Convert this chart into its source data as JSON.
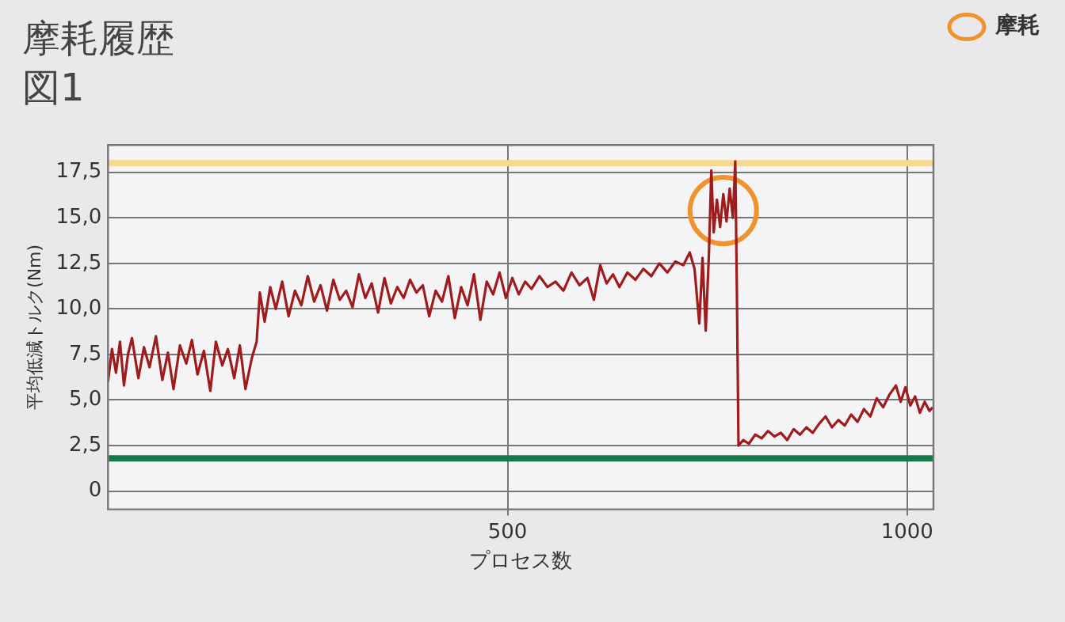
{
  "chart_data": {
    "type": "line",
    "title": "摩耗履歴",
    "subtitle": "図1",
    "xlabel": "プロセス数",
    "ylabel": "平均低減トルク(Nm)",
    "xlim": [
      0,
      1033
    ],
    "xticks": [
      500,
      1000
    ],
    "ylim": [
      -1,
      19
    ],
    "yticks": [
      0,
      {
        "value": 2.5,
        "label": "2,5"
      },
      {
        "value": 5,
        "label": "5,0"
      },
      {
        "value": 7.5,
        "label": "7,5"
      },
      {
        "value": 10,
        "label": "10,0"
      },
      {
        "value": 12.5,
        "label": "12,5"
      },
      {
        "value": 15,
        "label": "15,0"
      },
      {
        "value": 17.5,
        "label": "17,5"
      }
    ],
    "grid": true,
    "legend": "top right",
    "marker": "none",
    "line_style": "solid",
    "ref_lines": [
      {
        "axis": "y",
        "value": 18.0,
        "color": "#f8d98c"
      },
      {
        "axis": "y",
        "value": 1.8,
        "color": "#17784a"
      }
    ],
    "series": [
      {
        "color": "#9e1c1c",
        "x": [
          0,
          5,
          10,
          15,
          20,
          25,
          30,
          38,
          45,
          52,
          60,
          68,
          75,
          82,
          90,
          98,
          105,
          112,
          120,
          128,
          135,
          143,
          150,
          158,
          165,
          172,
          180,
          186,
          190,
          196,
          203,
          210,
          218,
          226,
          234,
          242,
          250,
          258,
          266,
          274,
          282,
          290,
          298,
          306,
          314,
          322,
          330,
          338,
          346,
          354,
          362,
          370,
          378,
          386,
          394,
          402,
          410,
          418,
          426,
          434,
          442,
          450,
          458,
          466,
          474,
          482,
          490,
          498,
          506,
          514,
          522,
          530,
          540,
          550,
          560,
          570,
          580,
          590,
          600,
          608,
          616,
          624,
          632,
          640,
          650,
          660,
          670,
          680,
          690,
          700,
          710,
          720,
          728,
          734,
          740,
          744,
          748,
          752,
          755,
          758,
          762,
          766,
          770,
          774,
          778,
          782,
          785,
          787,
          789,
          795,
          802,
          810,
          818,
          826,
          834,
          842,
          850,
          858,
          866,
          874,
          882,
          890,
          898,
          906,
          914,
          922,
          930,
          938,
          946,
          954,
          962,
          970,
          978,
          986,
          992,
          998,
          1004,
          1010,
          1016,
          1022,
          1028,
          1032
        ],
        "values": [
          6.0,
          7.8,
          6.5,
          8.2,
          5.8,
          7.5,
          8.4,
          6.2,
          7.9,
          6.8,
          8.5,
          6.1,
          7.6,
          5.6,
          8.0,
          7.0,
          8.3,
          6.4,
          7.7,
          5.5,
          8.2,
          6.9,
          7.8,
          6.2,
          8.0,
          5.6,
          7.3,
          8.2,
          10.9,
          9.3,
          11.2,
          10.0,
          11.5,
          9.6,
          11.0,
          10.2,
          11.8,
          10.4,
          11.3,
          9.9,
          11.6,
          10.5,
          11.0,
          10.1,
          11.9,
          10.6,
          11.4,
          9.8,
          11.7,
          10.3,
          11.2,
          10.6,
          11.6,
          10.9,
          11.3,
          9.6,
          11.0,
          10.4,
          11.8,
          9.5,
          11.2,
          10.2,
          11.9,
          9.4,
          11.5,
          10.8,
          12.0,
          10.6,
          11.7,
          10.8,
          11.5,
          11.1,
          11.8,
          11.2,
          11.5,
          11.0,
          12.0,
          11.3,
          11.7,
          10.5,
          12.4,
          11.4,
          11.9,
          11.2,
          12.0,
          11.6,
          12.2,
          11.8,
          12.5,
          12.0,
          12.6,
          12.4,
          13.1,
          12.2,
          9.2,
          12.8,
          8.8,
          13.0,
          17.6,
          14.2,
          16.0,
          14.5,
          16.3,
          14.8,
          16.6,
          15.0,
          18.1,
          11.0,
          2.5,
          2.8,
          2.6,
          3.1,
          2.9,
          3.3,
          3.0,
          3.2,
          2.8,
          3.4,
          3.1,
          3.5,
          3.2,
          3.7,
          4.1,
          3.5,
          3.9,
          3.6,
          4.2,
          3.8,
          4.5,
          4.1,
          5.1,
          4.6,
          5.3,
          5.8,
          4.9,
          5.7,
          4.7,
          5.2,
          4.3,
          4.9,
          4.4,
          4.6
        ]
      },
      {
        "type": "scatter",
        "name": "摩耗",
        "color": "#f0922e",
        "marker": "circle",
        "x": [
          770
        ],
        "values": [
          15.4
        ]
      }
    ]
  }
}
